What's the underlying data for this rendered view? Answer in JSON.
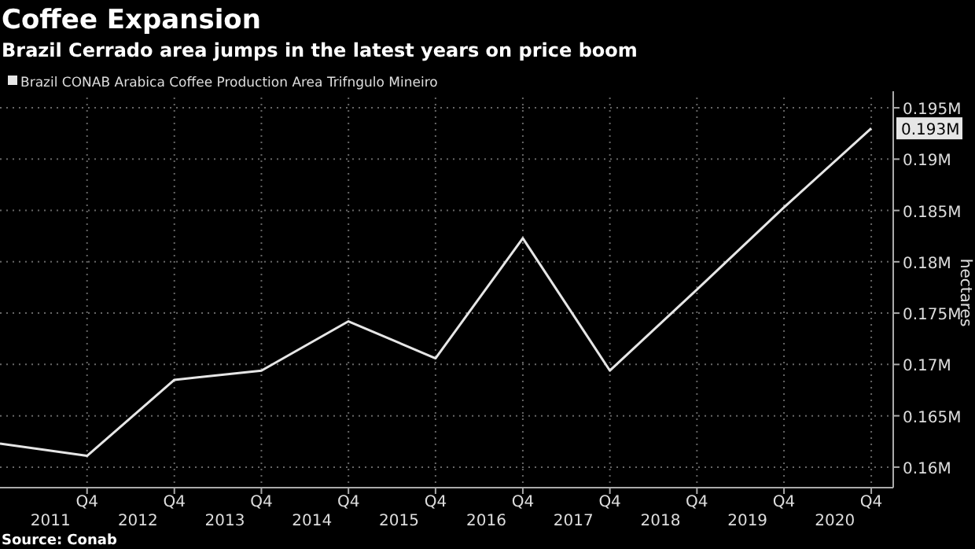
{
  "chart_data": {
    "type": "line",
    "title": "Coffee Expansion",
    "subtitle": "Brazil Cerrado area jumps in the latest years on price boom",
    "ylabel": "hectares",
    "annotations": [
      "Source: Conab"
    ],
    "x": [
      "2010-10",
      "2011-10",
      "2012-10",
      "2013-10",
      "2014-10",
      "2015-10",
      "2016-10",
      "2017-10",
      "2018-10",
      "2019-10",
      "2020-10"
    ],
    "series": [
      {
        "name": "Brazil CONAB Arabica Coffee Production Area Trifngulo Mineiro",
        "color": "#e6e6e6",
        "values": [
          0.1623,
          0.1611,
          0.1685,
          0.1694,
          0.1742,
          0.1706,
          0.1823,
          0.1694,
          0.1773,
          0.1853,
          0.193
        ],
        "value_labels": [
          null,
          null,
          null,
          null,
          null,
          null,
          null,
          null,
          null,
          null,
          "0.193M"
        ]
      }
    ],
    "xlim": [
      "2010-10",
      "2021-01"
    ],
    "xticks": [
      {
        "value": "2011-10",
        "label": "Q4"
      },
      {
        "value": "2012-10",
        "label": "Q4"
      },
      {
        "value": "2013-10",
        "label": "Q4"
      },
      {
        "value": "2014-10",
        "label": "Q4"
      },
      {
        "value": "2015-10",
        "label": "Q4"
      },
      {
        "value": "2016-10",
        "label": "Q4"
      },
      {
        "value": "2017-10",
        "label": "Q4"
      },
      {
        "value": "2018-10",
        "label": "Q4"
      },
      {
        "value": "2019-10",
        "label": "Q4"
      },
      {
        "value": "2020-10",
        "label": "Q4"
      }
    ],
    "x2lim": [
      "2010-10",
      "2021-01"
    ],
    "x2ticks": [
      {
        "value": "2011-05",
        "label": "2011"
      },
      {
        "value": "2012-05",
        "label": "2012"
      },
      {
        "value": "2013-05",
        "label": "2013"
      },
      {
        "value": "2014-05",
        "label": "2014"
      },
      {
        "value": "2015-05",
        "label": "2015"
      },
      {
        "value": "2016-05",
        "label": "2016"
      },
      {
        "value": "2017-05",
        "label": "2017"
      },
      {
        "value": "2018-05",
        "label": "2018"
      },
      {
        "value": "2019-05",
        "label": "2019"
      },
      {
        "value": "2020-05",
        "label": "2020"
      }
    ],
    "ylim": [
      0.158,
      0.196
    ],
    "yticks": [
      {
        "value": 0.16,
        "label": "0.16M"
      },
      {
        "value": 0.165,
        "label": "0.165M"
      },
      {
        "value": 0.17,
        "label": "0.17M"
      },
      {
        "value": 0.175,
        "label": "0.175M"
      },
      {
        "value": 0.18,
        "label": "0.18M"
      },
      {
        "value": 0.185,
        "label": "0.185M"
      },
      {
        "value": 0.19,
        "label": "0.19M"
      },
      {
        "value": 0.195,
        "label": "0.195M"
      }
    ],
    "grid": true,
    "legend": "top left",
    "marker": "none",
    "line_style": "solid"
  }
}
